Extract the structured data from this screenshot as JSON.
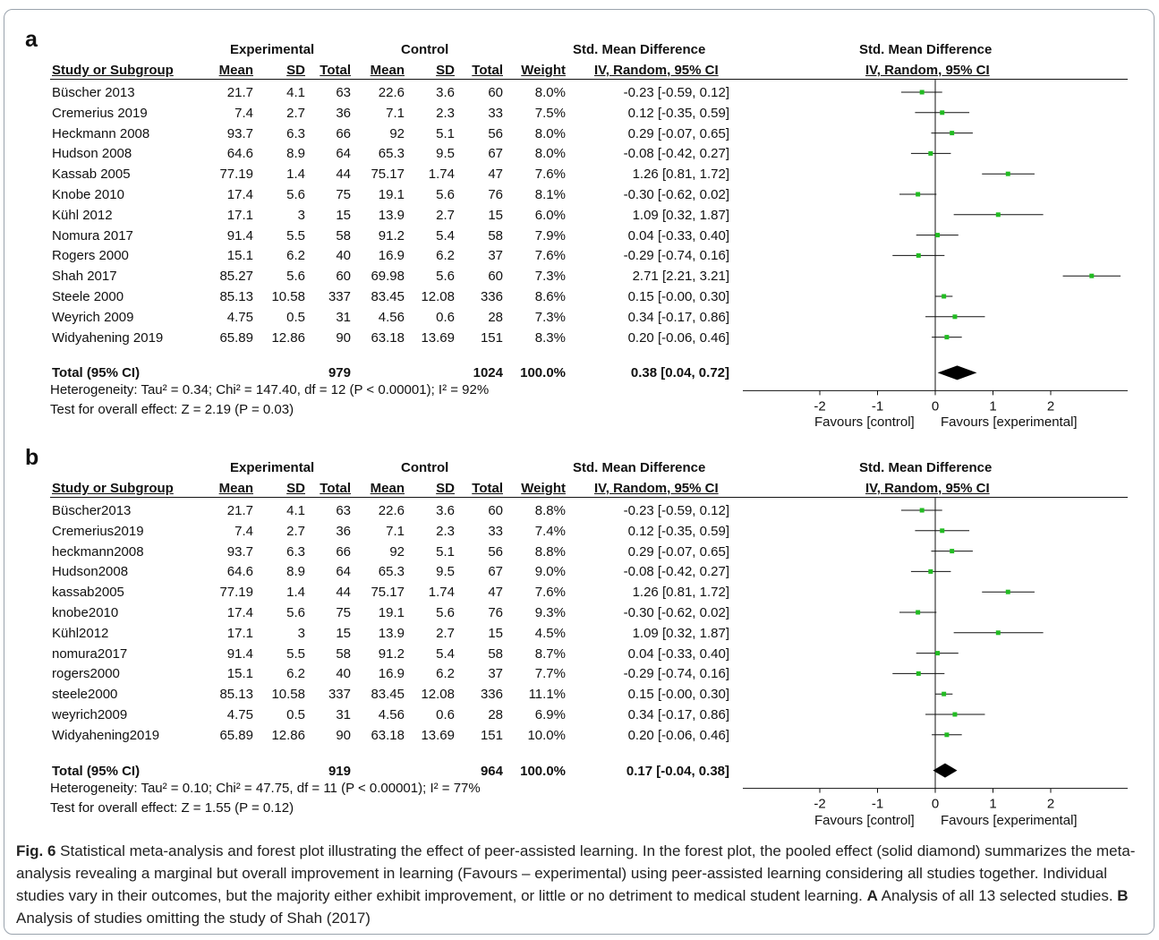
{
  "caption": {
    "fig_label": "Fig. 6",
    "text_1": " Statistical meta-analysis and forest plot illustrating the effect of peer-assisted learning. In the forest plot, the pooled effect (solid diamond) summarizes the meta-analysis revealing a marginal but overall improvement in learning (Favours – experimental) using peer-assisted learning considering all studies together. Individual studies vary in their outcomes, but the majority either exhibit improvement, or little or no detriment to medical student learning. ",
    "label_a": "A",
    "text_2": " Analysis of all 13 selected studies. ",
    "label_b": "B",
    "text_3": " Analysis of studies omitting the study of Shah (2017)"
  },
  "headers": {
    "experimental": "Experimental",
    "control": "Control",
    "smd": "Std. Mean Difference",
    "study": "Study or Subgroup",
    "mean": "Mean",
    "sd": "SD",
    "total": "Total",
    "weight": "Weight",
    "method": "IV, Random, 95% CI",
    "favours_left": "Favours [control]",
    "favours_right": "Favours [experimental]"
  },
  "chart_data": [
    {
      "type": "table",
      "panel_label": "a",
      "axis": {
        "xlim": [
          -2,
          3.2
        ],
        "ticks": [
          "-2",
          "-1",
          "0",
          "1",
          "2"
        ],
        "tick_values": [
          -2,
          -1,
          0,
          1,
          2
        ]
      },
      "studies": [
        {
          "name": "Büscher 2013",
          "e_mean": "21.7",
          "e_sd": "4.1",
          "e_total": "63",
          "c_mean": "22.6",
          "c_sd": "3.6",
          "c_total": "60",
          "weight": "8.0%",
          "ci_text": "-0.23 [-0.59, 0.12]",
          "est": -0.23,
          "lo": -0.59,
          "hi": 0.12
        },
        {
          "name": "Cremerius 2019",
          "e_mean": "7.4",
          "e_sd": "2.7",
          "e_total": "36",
          "c_mean": "7.1",
          "c_sd": "2.3",
          "c_total": "33",
          "weight": "7.5%",
          "ci_text": "0.12 [-0.35, 0.59]",
          "est": 0.12,
          "lo": -0.35,
          "hi": 0.59
        },
        {
          "name": "Heckmann 2008",
          "e_mean": "93.7",
          "e_sd": "6.3",
          "e_total": "66",
          "c_mean": "92",
          "c_sd": "5.1",
          "c_total": "56",
          "weight": "8.0%",
          "ci_text": "0.29 [-0.07, 0.65]",
          "est": 0.29,
          "lo": -0.07,
          "hi": 0.65
        },
        {
          "name": "Hudson 2008",
          "e_mean": "64.6",
          "e_sd": "8.9",
          "e_total": "64",
          "c_mean": "65.3",
          "c_sd": "9.5",
          "c_total": "67",
          "weight": "8.0%",
          "ci_text": "-0.08 [-0.42, 0.27]",
          "est": -0.08,
          "lo": -0.42,
          "hi": 0.27
        },
        {
          "name": "Kassab 2005",
          "e_mean": "77.19",
          "e_sd": "1.4",
          "e_total": "44",
          "c_mean": "75.17",
          "c_sd": "1.74",
          "c_total": "47",
          "weight": "7.6%",
          "ci_text": "1.26 [0.81, 1.72]",
          "est": 1.26,
          "lo": 0.81,
          "hi": 1.72
        },
        {
          "name": "Knobe 2010",
          "e_mean": "17.4",
          "e_sd": "5.6",
          "e_total": "75",
          "c_mean": "19.1",
          "c_sd": "5.6",
          "c_total": "76",
          "weight": "8.1%",
          "ci_text": "-0.30 [-0.62, 0.02]",
          "est": -0.3,
          "lo": -0.62,
          "hi": 0.02
        },
        {
          "name": "Kühl 2012",
          "e_mean": "17.1",
          "e_sd": "3",
          "e_total": "15",
          "c_mean": "13.9",
          "c_sd": "2.7",
          "c_total": "15",
          "weight": "6.0%",
          "ci_text": "1.09 [0.32, 1.87]",
          "est": 1.09,
          "lo": 0.32,
          "hi": 1.87
        },
        {
          "name": "Nomura 2017",
          "e_mean": "91.4",
          "e_sd": "5.5",
          "e_total": "58",
          "c_mean": "91.2",
          "c_sd": "5.4",
          "c_total": "58",
          "weight": "7.9%",
          "ci_text": "0.04 [-0.33, 0.40]",
          "est": 0.04,
          "lo": -0.33,
          "hi": 0.4
        },
        {
          "name": "Rogers 2000",
          "e_mean": "15.1",
          "e_sd": "6.2",
          "e_total": "40",
          "c_mean": "16.9",
          "c_sd": "6.2",
          "c_total": "37",
          "weight": "7.6%",
          "ci_text": "-0.29 [-0.74, 0.16]",
          "est": -0.29,
          "lo": -0.74,
          "hi": 0.16
        },
        {
          "name": "Shah 2017",
          "e_mean": "85.27",
          "e_sd": "5.6",
          "e_total": "60",
          "c_mean": "69.98",
          "c_sd": "5.6",
          "c_total": "60",
          "weight": "7.3%",
          "ci_text": "2.71 [2.21, 3.21]",
          "est": 2.71,
          "lo": 2.21,
          "hi": 3.21
        },
        {
          "name": "Steele 2000",
          "e_mean": "85.13",
          "e_sd": "10.58",
          "e_total": "337",
          "c_mean": "83.45",
          "c_sd": "12.08",
          "c_total": "336",
          "weight": "8.6%",
          "ci_text": "0.15 [-0.00, 0.30]",
          "est": 0.15,
          "lo": -0.0,
          "hi": 0.3
        },
        {
          "name": "Weyrich 2009",
          "e_mean": "4.75",
          "e_sd": "0.5",
          "e_total": "31",
          "c_mean": "4.56",
          "c_sd": "0.6",
          "c_total": "28",
          "weight": "7.3%",
          "ci_text": "0.34 [-0.17, 0.86]",
          "est": 0.34,
          "lo": -0.17,
          "hi": 0.86
        },
        {
          "name": "Widyahening 2019",
          "e_mean": "65.89",
          "e_sd": "12.86",
          "e_total": "90",
          "c_mean": "63.18",
          "c_sd": "13.69",
          "c_total": "151",
          "weight": "8.3%",
          "ci_text": "0.20 [-0.06, 0.46]",
          "est": 0.2,
          "lo": -0.06,
          "hi": 0.46
        }
      ],
      "total": {
        "label": "Total (95% CI)",
        "e_total": "979",
        "c_total": "1024",
        "weight": "100.0%",
        "ci_text": "0.38 [0.04, 0.72]",
        "est": 0.38,
        "lo": 0.04,
        "hi": 0.72
      },
      "heterogeneity": "Heterogeneity: Tau² = 0.34; Chi² = 147.40, df = 12 (P < 0.00001); I² = 92%",
      "overall": "Test for overall effect: Z = 2.19 (P = 0.03)"
    },
    {
      "type": "table",
      "panel_label": "b",
      "axis": {
        "xlim": [
          -2,
          3.2
        ],
        "ticks": [
          "-2",
          "-1",
          "0",
          "1",
          "2"
        ],
        "tick_values": [
          -2,
          -1,
          0,
          1,
          2
        ]
      },
      "studies": [
        {
          "name": "Büscher2013",
          "e_mean": "21.7",
          "e_sd": "4.1",
          "e_total": "63",
          "c_mean": "22.6",
          "c_sd": "3.6",
          "c_total": "60",
          "weight": "8.8%",
          "ci_text": "-0.23 [-0.59, 0.12]",
          "est": -0.23,
          "lo": -0.59,
          "hi": 0.12
        },
        {
          "name": "Cremerius2019",
          "e_mean": "7.4",
          "e_sd": "2.7",
          "e_total": "36",
          "c_mean": "7.1",
          "c_sd": "2.3",
          "c_total": "33",
          "weight": "7.4%",
          "ci_text": "0.12 [-0.35, 0.59]",
          "est": 0.12,
          "lo": -0.35,
          "hi": 0.59
        },
        {
          "name": "heckmann2008",
          "e_mean": "93.7",
          "e_sd": "6.3",
          "e_total": "66",
          "c_mean": "92",
          "c_sd": "5.1",
          "c_total": "56",
          "weight": "8.8%",
          "ci_text": "0.29 [-0.07, 0.65]",
          "est": 0.29,
          "lo": -0.07,
          "hi": 0.65
        },
        {
          "name": "Hudson2008",
          "e_mean": "64.6",
          "e_sd": "8.9",
          "e_total": "64",
          "c_mean": "65.3",
          "c_sd": "9.5",
          "c_total": "67",
          "weight": "9.0%",
          "ci_text": "-0.08 [-0.42, 0.27]",
          "est": -0.08,
          "lo": -0.42,
          "hi": 0.27
        },
        {
          "name": "kassab2005",
          "e_mean": "77.19",
          "e_sd": "1.4",
          "e_total": "44",
          "c_mean": "75.17",
          "c_sd": "1.74",
          "c_total": "47",
          "weight": "7.6%",
          "ci_text": "1.26 [0.81, 1.72]",
          "est": 1.26,
          "lo": 0.81,
          "hi": 1.72
        },
        {
          "name": "knobe2010",
          "e_mean": "17.4",
          "e_sd": "5.6",
          "e_total": "75",
          "c_mean": "19.1",
          "c_sd": "5.6",
          "c_total": "76",
          "weight": "9.3%",
          "ci_text": "-0.30 [-0.62, 0.02]",
          "est": -0.3,
          "lo": -0.62,
          "hi": 0.02
        },
        {
          "name": "Kühl2012",
          "e_mean": "17.1",
          "e_sd": "3",
          "e_total": "15",
          "c_mean": "13.9",
          "c_sd": "2.7",
          "c_total": "15",
          "weight": "4.5%",
          "ci_text": "1.09 [0.32, 1.87]",
          "est": 1.09,
          "lo": 0.32,
          "hi": 1.87
        },
        {
          "name": "nomura2017",
          "e_mean": "91.4",
          "e_sd": "5.5",
          "e_total": "58",
          "c_mean": "91.2",
          "c_sd": "5.4",
          "c_total": "58",
          "weight": "8.7%",
          "ci_text": "0.04 [-0.33, 0.40]",
          "est": 0.04,
          "lo": -0.33,
          "hi": 0.4
        },
        {
          "name": "rogers2000",
          "e_mean": "15.1",
          "e_sd": "6.2",
          "e_total": "40",
          "c_mean": "16.9",
          "c_sd": "6.2",
          "c_total": "37",
          "weight": "7.7%",
          "ci_text": "-0.29 [-0.74, 0.16]",
          "est": -0.29,
          "lo": -0.74,
          "hi": 0.16
        },
        {
          "name": "steele2000",
          "e_mean": "85.13",
          "e_sd": "10.58",
          "e_total": "337",
          "c_mean": "83.45",
          "c_sd": "12.08",
          "c_total": "336",
          "weight": "11.1%",
          "ci_text": "0.15 [-0.00, 0.30]",
          "est": 0.15,
          "lo": -0.0,
          "hi": 0.3
        },
        {
          "name": "weyrich2009",
          "e_mean": "4.75",
          "e_sd": "0.5",
          "e_total": "31",
          "c_mean": "4.56",
          "c_sd": "0.6",
          "c_total": "28",
          "weight": "6.9%",
          "ci_text": "0.34 [-0.17, 0.86]",
          "est": 0.34,
          "lo": -0.17,
          "hi": 0.86
        },
        {
          "name": "Widyahening2019",
          "e_mean": "65.89",
          "e_sd": "12.86",
          "e_total": "90",
          "c_mean": "63.18",
          "c_sd": "13.69",
          "c_total": "151",
          "weight": "10.0%",
          "ci_text": "0.20 [-0.06, 0.46]",
          "est": 0.2,
          "lo": -0.06,
          "hi": 0.46
        }
      ],
      "total": {
        "label": "Total (95% CI)",
        "e_total": "919",
        "c_total": "964",
        "weight": "100.0%",
        "ci_text": "0.17 [-0.04, 0.38]",
        "est": 0.17,
        "lo": -0.04,
        "hi": 0.38
      },
      "heterogeneity": "Heterogeneity: Tau² = 0.10; Chi² = 47.75, df = 11 (P < 0.00001); I² = 77%",
      "overall": "Test for overall effect: Z = 1.55 (P = 0.12)"
    }
  ],
  "colors": {
    "marker": "#22bb22",
    "line": "#111111",
    "diamond": "#000000",
    "frame": "#9aa3ad"
  }
}
